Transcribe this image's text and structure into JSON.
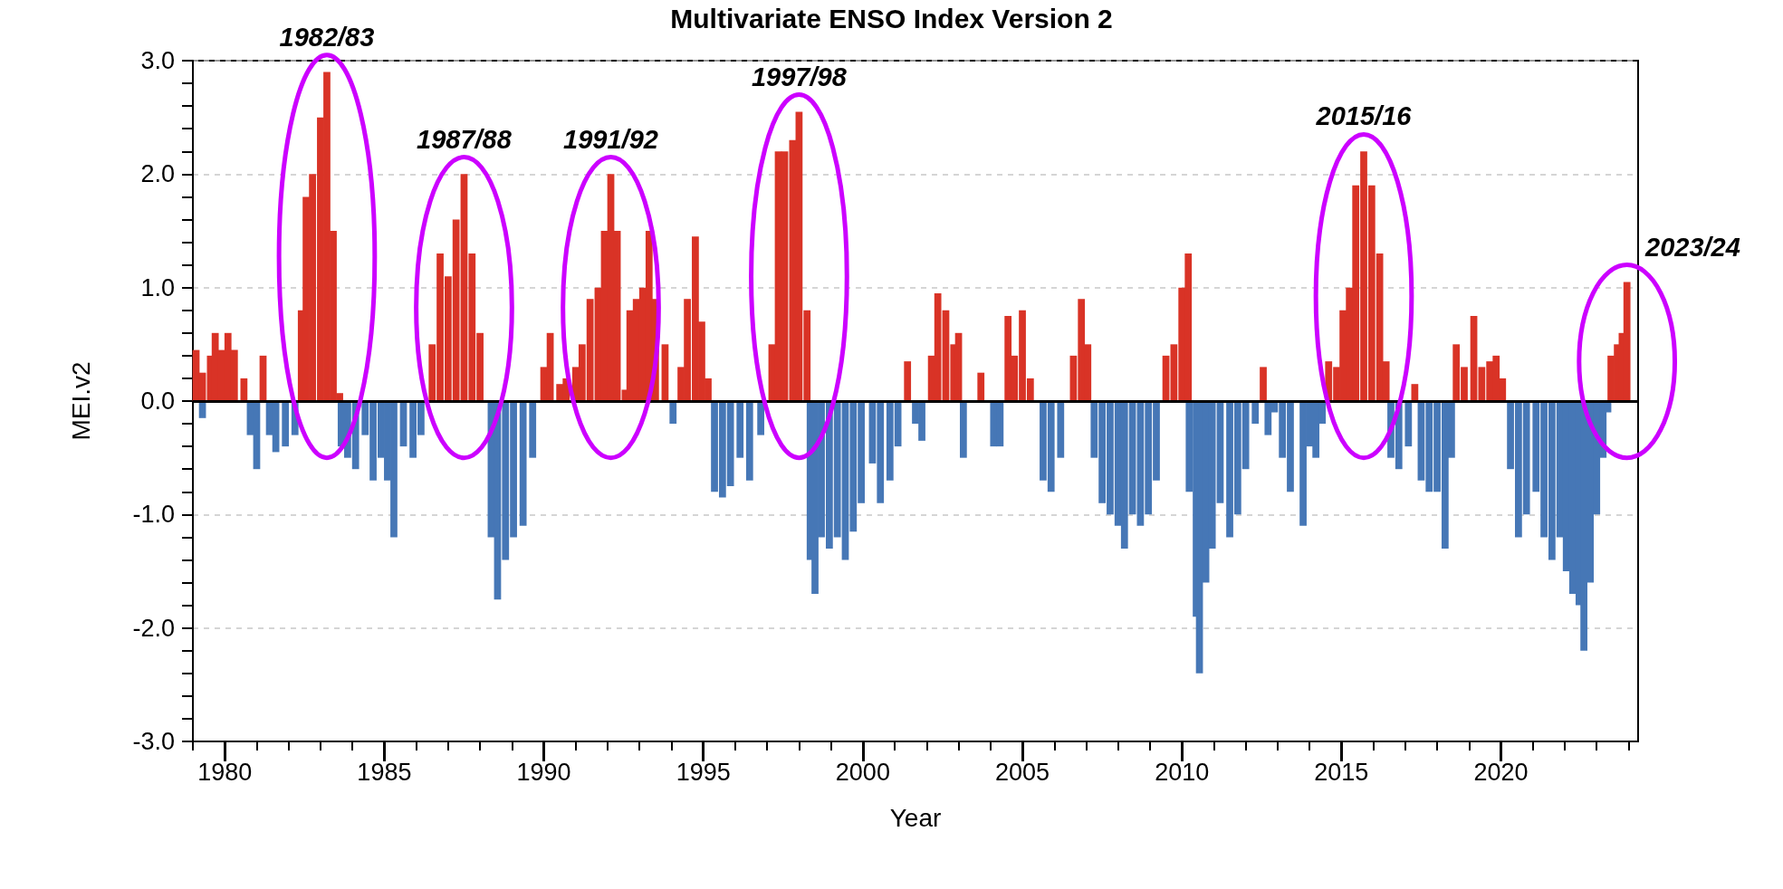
{
  "chart_data": {
    "type": "bar",
    "title": "Multivariate ENSO Index Version 2",
    "xlabel": "Year",
    "ylabel": "MEI.v2",
    "xlim": [
      1979,
      2024.3
    ],
    "ylim": [
      -3,
      3
    ],
    "xticks": [
      {
        "value": 1979,
        "label": null
      },
      1980,
      {
        "value": 1981,
        "label": null
      },
      {
        "value": 1982,
        "label": null
      },
      {
        "value": 1983,
        "label": null
      },
      {
        "value": 1984,
        "label": null
      },
      1985,
      {
        "value": 1986,
        "label": null
      },
      {
        "value": 1987,
        "label": null
      },
      {
        "value": 1988,
        "label": null
      },
      {
        "value": 1989,
        "label": null
      },
      1990,
      {
        "value": 1991,
        "label": null
      },
      {
        "value": 1992,
        "label": null
      },
      {
        "value": 1993,
        "label": null
      },
      {
        "value": 1994,
        "label": null
      },
      1995,
      {
        "value": 1996,
        "label": null
      },
      {
        "value": 1997,
        "label": null
      },
      {
        "value": 1998,
        "label": null
      },
      {
        "value": 1999,
        "label": null
      },
      2000,
      {
        "value": 2001,
        "label": null
      },
      {
        "value": 2002,
        "label": null
      },
      {
        "value": 2003,
        "label": null
      },
      {
        "value": 2004,
        "label": null
      },
      2005,
      {
        "value": 2006,
        "label": null
      },
      {
        "value": 2007,
        "label": null
      },
      {
        "value": 2008,
        "label": null
      },
      {
        "value": 2009,
        "label": null
      },
      2010,
      {
        "value": 2011,
        "label": null
      },
      {
        "value": 2012,
        "label": null
      },
      {
        "value": 2013,
        "label": null
      },
      {
        "value": 2014,
        "label": null
      },
      2015,
      {
        "value": 2016,
        "label": null
      },
      {
        "value": 2017,
        "label": null
      },
      {
        "value": 2018,
        "label": null
      },
      {
        "value": 2019,
        "label": null
      },
      2020,
      {
        "value": 2021,
        "label": null
      },
      {
        "value": 2022,
        "label": null
      },
      {
        "value": 2023,
        "label": null
      },
      {
        "value": 2024,
        "label": null
      }
    ],
    "yticks": [
      {
        "value": -3,
        "label": "-3.0"
      },
      {
        "value": -2.8,
        "label": null
      },
      {
        "value": -2.6,
        "label": null
      },
      {
        "value": -2.4,
        "label": null
      },
      {
        "value": -2.2,
        "label": null
      },
      {
        "value": -2,
        "label": "-2.0"
      },
      {
        "value": -1.8,
        "label": null
      },
      {
        "value": -1.6,
        "label": null
      },
      {
        "value": -1.4,
        "label": null
      },
      {
        "value": -1.2,
        "label": null
      },
      {
        "value": -1,
        "label": "-1.0"
      },
      {
        "value": -0.8,
        "label": null
      },
      {
        "value": -0.6,
        "label": null
      },
      {
        "value": -0.4,
        "label": null
      },
      {
        "value": -0.2,
        "label": null
      },
      {
        "value": 0,
        "label": "0.0"
      },
      {
        "value": 0.2,
        "label": null
      },
      {
        "value": 0.4,
        "label": null
      },
      {
        "value": 0.6,
        "label": null
      },
      {
        "value": 0.8,
        "label": null
      },
      {
        "value": 1,
        "label": "1.0"
      },
      {
        "value": 1.2,
        "label": null
      },
      {
        "value": 1.4,
        "label": null
      },
      {
        "value": 1.6,
        "label": null
      },
      {
        "value": 1.8,
        "label": null
      },
      {
        "value": 2,
        "label": "2.0"
      },
      {
        "value": 2.2,
        "label": null
      },
      {
        "value": 2.4,
        "label": null
      },
      {
        "value": 2.6,
        "label": null
      },
      {
        "value": 2.8,
        "label": null
      },
      {
        "value": 3,
        "label": "3.0"
      }
    ],
    "grid": "y",
    "ref_lines": [
      {
        "axis": "y",
        "value": 0,
        "color": "#000000"
      }
    ],
    "series": [
      {
        "color": "#d93326",
        "x": [
          1979.1,
          1979.3,
          1979.55,
          1979.7,
          1979.9,
          1980.1,
          1980.3,
          1980.6,
          1981.2,
          1982.4,
          1982.55,
          1982.75,
          1983.0,
          1983.2,
          1983.4,
          1983.6,
          1986.5,
          1986.75,
          1987.0,
          1987.25,
          1987.5,
          1987.75,
          1988.0,
          1990.0,
          1990.2,
          1990.5,
          1990.7,
          1991.0,
          1991.2,
          1991.45,
          1991.7,
          1991.9,
          1992.1,
          1992.3,
          1992.55,
          1992.7,
          1992.9,
          1993.1,
          1993.3,
          1993.5,
          1993.8,
          1994.3,
          1994.5,
          1994.75,
          1994.95,
          1995.15,
          1997.15,
          1997.35,
          1997.55,
          1997.8,
          1998.0,
          1998.25,
          2001.4,
          2002.15,
          2002.35,
          2002.6,
          2002.85,
          2003.0,
          2003.7,
          2004.55,
          2004.75,
          2005.0,
          2005.25,
          2006.6,
          2006.85,
          2007.05,
          2009.5,
          2009.75,
          2010.0,
          2010.2,
          2012.55,
          2014.6,
          2014.85,
          2015.05,
          2015.25,
          2015.45,
          2015.7,
          2015.95,
          2016.2,
          2016.4,
          2017.3,
          2018.6,
          2018.85,
          2019.15,
          2019.4,
          2019.65,
          2019.85,
          2020.05,
          2023.45,
          2023.65,
          2023.8,
          2023.95
        ],
        "values": [
          0.45,
          0.25,
          0.4,
          0.6,
          0.45,
          0.6,
          0.45,
          0.2,
          0.4,
          0.8,
          1.8,
          2.0,
          2.5,
          2.9,
          1.5,
          0.07,
          0.5,
          1.3,
          1.1,
          1.6,
          2.0,
          1.3,
          0.6,
          0.3,
          0.6,
          0.15,
          0.2,
          0.3,
          0.5,
          0.9,
          1.0,
          1.5,
          2.0,
          1.5,
          0.1,
          0.8,
          0.9,
          1.0,
          1.5,
          0.9,
          0.5,
          0.3,
          0.9,
          1.45,
          0.7,
          0.2,
          0.5,
          2.2,
          2.2,
          2.3,
          2.55,
          0.8,
          0.35,
          0.4,
          0.95,
          0.8,
          0.5,
          0.6,
          0.25,
          0.75,
          0.4,
          0.8,
          0.2,
          0.4,
          0.9,
          0.5,
          0.4,
          0.5,
          1.0,
          1.3,
          0.3,
          0.35,
          0.3,
          0.8,
          1.0,
          1.9,
          2.2,
          1.9,
          1.3,
          0.35,
          0.15,
          0.5,
          0.3,
          0.75,
          0.3,
          0.35,
          0.4,
          0.2,
          0.4,
          0.5,
          0.6,
          1.05
        ]
      },
      {
        "color": "#4677b6",
        "x": [
          1979.3,
          1980.8,
          1981.0,
          1981.4,
          1981.6,
          1981.9,
          1982.2,
          1983.65,
          1983.85,
          1984.1,
          1984.4,
          1984.65,
          1984.9,
          1985.1,
          1985.3,
          1985.6,
          1985.9,
          1986.15,
          1988.35,
          1988.55,
          1988.8,
          1989.05,
          1989.35,
          1989.65,
          1994.05,
          1995.35,
          1995.6,
          1995.85,
          1996.15,
          1996.45,
          1996.8,
          1998.35,
          1998.5,
          1998.7,
          1998.95,
          1999.2,
          1999.45,
          1999.7,
          1999.95,
          2000.3,
          2000.55,
          2000.85,
          2001.1,
          2001.65,
          2001.85,
          2003.15,
          2004.1,
          2004.3,
          2005.65,
          2005.9,
          2006.2,
          2007.25,
          2007.5,
          2007.75,
          2008.0,
          2008.2,
          2008.45,
          2008.7,
          2008.95,
          2009.2,
          2010.23,
          2010.45,
          2010.55,
          2010.75,
          2010.95,
          2011.2,
          2011.5,
          2011.75,
          2012.0,
          2012.3,
          2012.7,
          2012.9,
          2013.15,
          2013.4,
          2013.8,
          2014.0,
          2014.2,
          2014.4,
          2016.55,
          2016.8,
          2017.1,
          2017.5,
          2017.75,
          2018.0,
          2018.25,
          2018.45,
          2020.3,
          2020.55,
          2020.8,
          2021.1,
          2021.35,
          2021.6,
          2021.85,
          2022.05,
          2022.25,
          2022.45,
          2022.6,
          2022.8,
          2023.0,
          2023.2,
          2023.35
        ],
        "values": [
          -0.15,
          -0.3,
          -0.6,
          -0.3,
          -0.45,
          -0.4,
          -0.3,
          -0.4,
          -0.5,
          -0.6,
          -0.3,
          -0.7,
          -0.5,
          -0.7,
          -1.2,
          -0.4,
          -0.5,
          -0.3,
          -1.2,
          -1.75,
          -1.4,
          -1.2,
          -1.1,
          -0.5,
          -0.2,
          -0.8,
          -0.85,
          -0.75,
          -0.5,
          -0.7,
          -0.3,
          -1.4,
          -1.7,
          -1.2,
          -1.3,
          -1.2,
          -1.4,
          -1.15,
          -0.9,
          -0.55,
          -0.9,
          -0.7,
          -0.4,
          -0.2,
          -0.35,
          -0.5,
          -0.4,
          -0.4,
          -0.7,
          -0.8,
          -0.5,
          -0.5,
          -0.9,
          -1.0,
          -1.1,
          -1.3,
          -1.0,
          -1.1,
          -1.0,
          -0.7,
          -0.8,
          -1.9,
          -2.4,
          -1.6,
          -1.3,
          -0.9,
          -1.2,
          -1.0,
          -0.6,
          -0.2,
          -0.3,
          -0.1,
          -0.5,
          -0.8,
          -1.1,
          -0.4,
          -0.5,
          -0.2,
          -0.5,
          -0.6,
          -0.4,
          -0.7,
          -0.8,
          -0.8,
          -1.3,
          -0.5,
          -0.6,
          -1.2,
          -1.0,
          -0.8,
          -1.2,
          -1.4,
          -1.2,
          -1.5,
          -1.7,
          -1.8,
          -2.2,
          -1.6,
          -1.0,
          -0.5,
          -0.1
        ]
      }
    ],
    "annotations": [
      {
        "text": "1982/83",
        "x": 1983.2,
        "y": 2.9
      },
      {
        "text": "1987/88",
        "x": 1987.5,
        "y": 2.0
      },
      {
        "text": "1991/92",
        "x": 1992.1,
        "y": 2.0
      },
      {
        "text": "1997/98",
        "x": 1998.0,
        "y": 2.55
      },
      {
        "text": "2015/16",
        "x": 2015.7,
        "y": 2.2
      },
      {
        "text": "2023/24",
        "x": 2023.95,
        "y": 1.05
      }
    ]
  }
}
